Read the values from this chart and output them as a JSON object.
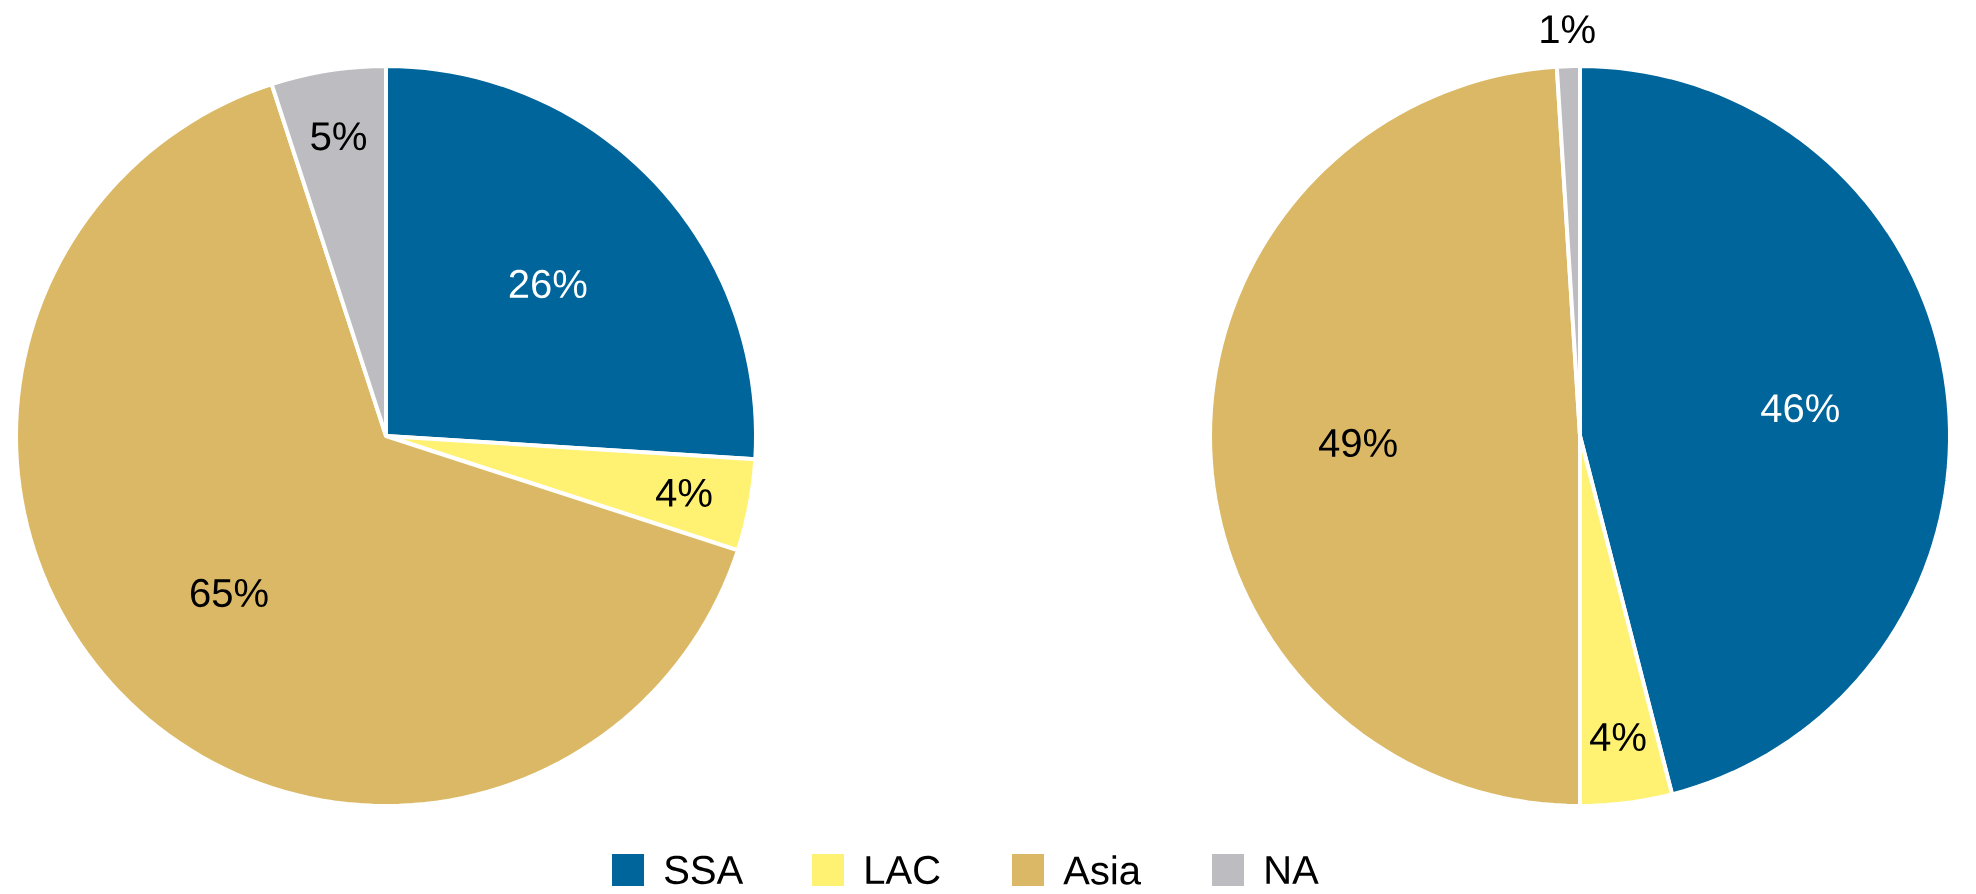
{
  "chart_data": [
    {
      "type": "pie",
      "categories": [
        "SSA",
        "LAC",
        "Asia",
        "NA"
      ],
      "values": [
        26,
        4,
        65,
        5
      ],
      "colors": [
        "#00659a",
        "#fff272",
        "#dbb865",
        "#bdbdc1"
      ],
      "value_labels": [
        "26%",
        "4%",
        "65%",
        "5%"
      ],
      "legend": "bottom"
    },
    {
      "type": "pie",
      "categories": [
        null,
        null,
        null,
        null
      ],
      "values": [
        46,
        4,
        49,
        1
      ],
      "colors": [
        "#00659a",
        "#fff272",
        "#dbb865",
        "#bdbdc1"
      ],
      "value_labels": [
        "46%",
        "4%",
        "49%",
        "1%"
      ]
    }
  ]
}
